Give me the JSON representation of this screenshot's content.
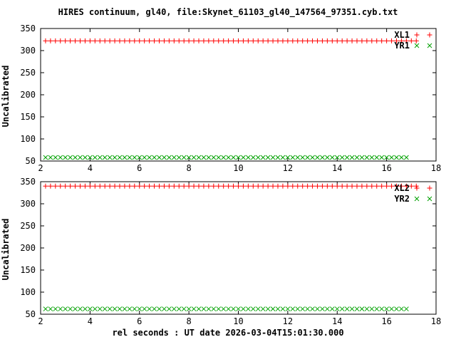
{
  "figure": {
    "title": "HIRES continuum, gl40, file:Skynet_61103_gl40_147564_97351.cyb.txt",
    "xlabel": "rel seconds : UT date 2026-03-04T15:01:30.000",
    "background": "#ffffff",
    "frame_color": "#000000"
  },
  "chart_data": [
    {
      "type": "scatter",
      "title": "",
      "ylabel": "Uncalibrated",
      "xlabel": "",
      "xlim": [
        2,
        18
      ],
      "ylim": [
        50,
        350
      ],
      "xticks": [
        2,
        4,
        6,
        8,
        10,
        12,
        14,
        16,
        18
      ],
      "yticks": [
        50,
        100,
        150,
        200,
        250,
        300,
        350
      ],
      "grid": false,
      "legend_position": "top-right-inside",
      "series": [
        {
          "name": "XL1",
          "marker": "plus",
          "color": "#ff0000",
          "x_start": 2.2,
          "x_end": 17.1,
          "x_step": 0.2,
          "y_const": 322
        },
        {
          "name": "YR1",
          "marker": "cross",
          "color": "#00a000",
          "x_start": 2.2,
          "x_end": 16.9,
          "x_step": 0.2,
          "y_const": 58
        }
      ]
    },
    {
      "type": "scatter",
      "title": "",
      "ylabel": "Uncalibrated",
      "xlabel": "rel seconds : UT date 2026-03-04T15:01:30.000",
      "xlim": [
        2,
        18
      ],
      "ylim": [
        50,
        350
      ],
      "xticks": [
        2,
        4,
        6,
        8,
        10,
        12,
        14,
        16,
        18
      ],
      "yticks": [
        50,
        100,
        150,
        200,
        250,
        300,
        350
      ],
      "grid": false,
      "legend_position": "top-right-inside",
      "series": [
        {
          "name": "XL2",
          "marker": "plus",
          "color": "#ff0000",
          "x_start": 2.2,
          "x_end": 17.1,
          "x_step": 0.2,
          "y_const": 340
        },
        {
          "name": "YR2",
          "marker": "cross",
          "color": "#00a000",
          "x_start": 2.2,
          "x_end": 16.9,
          "x_step": 0.2,
          "y_const": 62
        }
      ]
    }
  ],
  "layout_note": "two stacked gnuplot-style panels, constant-valued point series"
}
